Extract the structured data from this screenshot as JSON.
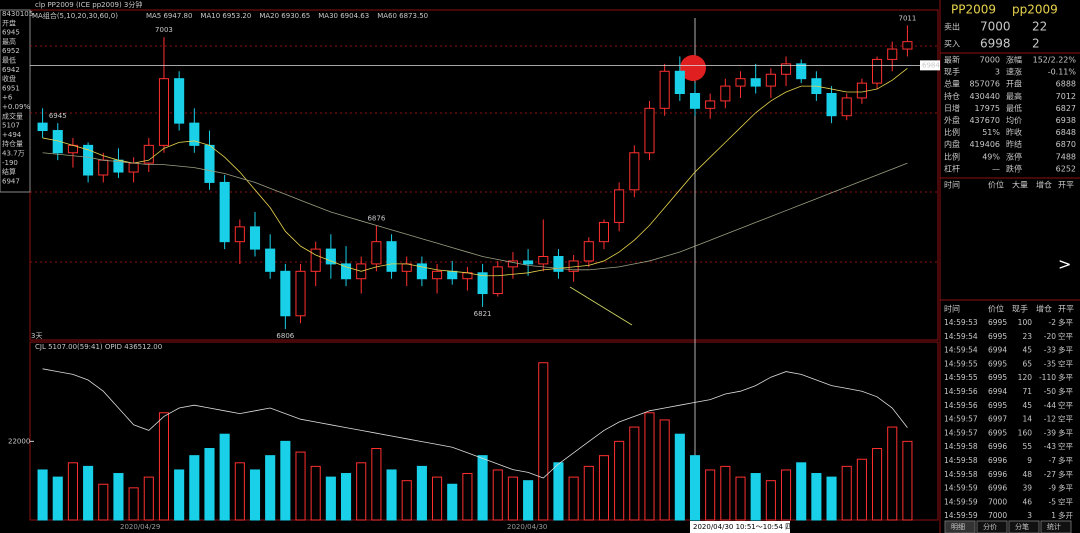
{
  "header": {
    "symbol": "clp PP2009 (ICE pp2009) 3分钟",
    "ma": [
      {
        "label": "MA组合(5,10,20,30,60,0)",
        "color": "#c8c8c8"
      },
      {
        "label": "MA5 6947.80",
        "color": "#ffffff"
      },
      {
        "label": "MA10 6953.20",
        "color": "#e8d44d"
      },
      {
        "label": "MA20 6930.65",
        "color": "#d040d0"
      },
      {
        "label": "MA30 6904.63",
        "color": "#40d040"
      },
      {
        "label": "MA60 6873.50",
        "color": "#9aa080"
      }
    ]
  },
  "info": [
    {
      "text": "8430105",
      "color": "#ffffff"
    },
    {
      "text": "开盘",
      "color": "#ffffff"
    },
    {
      "text": "6945",
      "color": "#ff4040"
    },
    {
      "text": "最高",
      "color": "#ffffff"
    },
    {
      "text": "6952",
      "color": "#ff4040"
    },
    {
      "text": "最低",
      "color": "#ffffff"
    },
    {
      "text": "6942",
      "color": "#40ff40"
    },
    {
      "text": "收盘",
      "color": "#ffffff"
    },
    {
      "text": "6951",
      "color": "#ff4040"
    },
    {
      "text": "+6",
      "color": "#ff4040"
    },
    {
      "text": "+0.09%",
      "color": "#ff4040"
    },
    {
      "text": "成交量",
      "color": "#ffffff"
    },
    {
      "text": "5107",
      "color": "#e8d44d"
    },
    {
      "text": "+494",
      "color": "#e8d44d"
    },
    {
      "text": "持仓量",
      "color": "#ffffff"
    },
    {
      "text": "43.7万",
      "color": "#e8d44d"
    },
    {
      "text": "-190",
      "color": "#40ff40"
    },
    {
      "text": "结算",
      "color": "#ffffff"
    },
    {
      "text": "6947",
      "color": "#e8d44d"
    }
  ],
  "chart_data": {
    "type": "candlestick",
    "up_color": "#ff3030",
    "down_color": "#19d0e8",
    "ylim": [
      6800,
      7020
    ],
    "candles": [
      [
        6945,
        6955,
        6935,
        6940
      ],
      [
        6940,
        6945,
        6920,
        6925
      ],
      [
        6925,
        6935,
        6915,
        6930
      ],
      [
        6930,
        6932,
        6905,
        6910
      ],
      [
        6910,
        6925,
        6905,
        6920
      ],
      [
        6920,
        6928,
        6908,
        6912
      ],
      [
        6912,
        6922,
        6905,
        6918
      ],
      [
        6918,
        6935,
        6912,
        6930
      ],
      [
        6930,
        7003,
        6925,
        6975
      ],
      [
        6975,
        6980,
        6940,
        6945
      ],
      [
        6945,
        6955,
        6925,
        6930
      ],
      [
        6930,
        6940,
        6900,
        6905
      ],
      [
        6905,
        6910,
        6860,
        6865
      ],
      [
        6865,
        6880,
        6850,
        6875
      ],
      [
        6875,
        6885,
        6855,
        6860
      ],
      [
        6860,
        6870,
        6840,
        6845
      ],
      [
        6845,
        6850,
        6806,
        6815
      ],
      [
        6815,
        6850,
        6810,
        6845
      ],
      [
        6845,
        6865,
        6835,
        6860
      ],
      [
        6860,
        6870,
        6840,
        6850
      ],
      [
        6850,
        6862,
        6835,
        6840
      ],
      [
        6840,
        6855,
        6830,
        6850
      ],
      [
        6850,
        6876,
        6845,
        6865
      ],
      [
        6865,
        6870,
        6840,
        6845
      ],
      [
        6845,
        6855,
        6835,
        6850
      ],
      [
        6850,
        6855,
        6835,
        6840
      ],
      [
        6840,
        6850,
        6830,
        6845
      ],
      [
        6845,
        6852,
        6836,
        6840
      ],
      [
        6840,
        6848,
        6832,
        6844
      ],
      [
        6844,
        6850,
        6821,
        6830
      ],
      [
        6830,
        6852,
        6828,
        6848
      ],
      [
        6848,
        6858,
        6840,
        6852
      ],
      [
        6852,
        6860,
        6842,
        6850
      ],
      [
        6850,
        6880,
        6845,
        6855
      ],
      [
        6855,
        6860,
        6840,
        6845
      ],
      [
        6845,
        6856,
        6838,
        6852
      ],
      [
        6852,
        6868,
        6848,
        6865
      ],
      [
        6865,
        6880,
        6860,
        6878
      ],
      [
        6878,
        6905,
        6872,
        6900
      ],
      [
        6900,
        6930,
        6895,
        6925
      ],
      [
        6925,
        6960,
        6920,
        6955
      ],
      [
        6955,
        6985,
        6950,
        6980
      ],
      [
        6980,
        6990,
        6960,
        6965
      ],
      [
        6965,
        6972,
        6950,
        6955
      ],
      [
        6955,
        6965,
        6948,
        6960
      ],
      [
        6960,
        6975,
        6955,
        6970
      ],
      [
        6970,
        6980,
        6962,
        6975
      ],
      [
        6975,
        6985,
        6965,
        6970
      ],
      [
        6970,
        6982,
        6962,
        6978
      ],
      [
        6978,
        6990,
        6970,
        6985
      ],
      [
        6985,
        6988,
        6972,
        6975
      ],
      [
        6975,
        6980,
        6960,
        6965
      ],
      [
        6965,
        6970,
        6945,
        6950
      ],
      [
        6950,
        6965,
        6947,
        6962
      ],
      [
        6962,
        6975,
        6958,
        6972
      ],
      [
        6972,
        6990,
        6968,
        6988
      ],
      [
        6988,
        7000,
        6980,
        6995
      ],
      [
        6995,
        7011,
        6990,
        7000
      ]
    ],
    "ma_series": [
      {
        "name": "MA10",
        "color": "#e8d44d",
        "values": [
          6935,
          6933,
          6930,
          6927,
          6923,
          6920,
          6918,
          6920,
          6928,
          6932,
          6933,
          6930,
          6922,
          6912,
          6900,
          6888,
          6872,
          6862,
          6856,
          6852,
          6848,
          6845,
          6848,
          6850,
          6850,
          6848,
          6846,
          6845,
          6844,
          6842,
          6842,
          6843,
          6844,
          6846,
          6847,
          6848,
          6849,
          6852,
          6858,
          6866,
          6876,
          6888,
          6900,
          6912,
          6922,
          6932,
          6942,
          6952,
          6960,
          6966,
          6970,
          6970,
          6968,
          6966,
          6966,
          6968,
          6974,
          6982
        ]
      },
      {
        "name": "MA60",
        "color": "#9aa080",
        "values": [
          6925,
          6924,
          6923,
          6922,
          6920,
          6919,
          6918,
          6917,
          6917,
          6916,
          6915,
          6913,
          6911,
          6908,
          6905,
          6901,
          6897,
          6893,
          6889,
          6885,
          6882,
          6879,
          6876,
          6873,
          6870,
          6867,
          6864,
          6861,
          6858,
          6855,
          6853,
          6851,
          6849,
          6848,
          6847,
          6846,
          6846,
          6847,
          6848,
          6850,
          6852,
          6855,
          6858,
          6862,
          6866,
          6870,
          6874,
          6878,
          6882,
          6886,
          6890,
          6894,
          6898,
          6902,
          6906,
          6910,
          6914,
          6918
        ]
      }
    ],
    "annotations": [
      7003,
      6876,
      6806,
      6821,
      6945,
      7011
    ],
    "crosshair": 6984,
    "period_label": "3天",
    "volume_header": "CJL 5107.00(59:41) OPID 436512.00",
    "volumes": [
      14000,
      12000,
      16000,
      15000,
      10000,
      13000,
      9000,
      12000,
      30000,
      14000,
      18000,
      20000,
      24000,
      16000,
      14000,
      18000,
      22000,
      19000,
      15000,
      12000,
      13000,
      16000,
      20000,
      14000,
      11000,
      15000,
      12000,
      10000,
      13000,
      18000,
      14000,
      12000,
      11000,
      44000,
      16000,
      12000,
      15000,
      18000,
      22000,
      26000,
      30000,
      28000,
      24000,
      18000,
      14000,
      15000,
      12000,
      13000,
      11000,
      14000,
      16000,
      13000,
      12000,
      15000,
      17000,
      20000,
      26000,
      22000
    ],
    "vlim": [
      0,
      47000
    ],
    "vticks": [
      22000
    ],
    "oi": [
      447000,
      446500,
      446000,
      445000,
      443000,
      440000,
      437000,
      436000,
      438500,
      440000,
      440500,
      440000,
      439500,
      439000,
      439500,
      440000,
      439000,
      438000,
      437500,
      437000,
      436500,
      436000,
      435500,
      435000,
      434500,
      434000,
      433500,
      433000,
      432000,
      431000,
      430000,
      429000,
      428500,
      427500,
      430000,
      432000,
      434000,
      436000,
      437500,
      438500,
      439500,
      440000,
      440500,
      441000,
      441500,
      442500,
      443000,
      444000,
      445500,
      446500,
      446000,
      445000,
      444000,
      443500,
      443000,
      442000,
      440000,
      436500
    ],
    "y2lim": [
      420000,
      450000
    ],
    "dates": [
      "2020/04/29",
      "2020/04/30",
      "2020/04/30 10:51～10:54 四"
    ]
  },
  "quote": {
    "title": "PP2009",
    "code": "pp2009",
    "sell": [
      "卖出",
      "7000",
      "22"
    ],
    "buy": [
      "买入",
      "6998",
      "2"
    ],
    "rows": [
      [
        "最新",
        "7000",
        "涨幅",
        "152/2.22%"
      ],
      [
        "现手",
        "3",
        "速涨",
        "-0.11%"
      ],
      [
        "总量",
        "857076",
        "开盘",
        "6888"
      ],
      [
        "持仓",
        "430440",
        "最高",
        "7012"
      ],
      [
        "日增",
        "17975",
        "最低",
        "6827"
      ],
      [
        "外盘",
        "437670",
        "均价",
        "6938"
      ],
      [
        "比例",
        "51%",
        "昨收",
        "6848"
      ],
      [
        "内盘",
        "419406",
        "昨结",
        "6870"
      ],
      [
        "比例",
        "49%",
        "涨停",
        "7488"
      ],
      [
        "杠杆",
        "—",
        "跌停",
        "6252"
      ]
    ]
  },
  "big_trades": {
    "columns": [
      "时间",
      "价位",
      "大量",
      "增仓",
      "开平"
    ]
  },
  "trades": {
    "columns": [
      "时间",
      "价位",
      "现手",
      "增仓",
      "开平"
    ],
    "rows": [
      [
        "14:59:53",
        "6995",
        "100",
        "-2",
        "多平"
      ],
      [
        "14:59:54",
        "6995",
        "23",
        "-20",
        "空平"
      ],
      [
        "14:59:54",
        "6994",
        "45",
        "-33",
        "多平"
      ],
      [
        "14:59:55",
        "6995",
        "65",
        "-35",
        "空平"
      ],
      [
        "14:59:55",
        "6995",
        "120",
        "-110",
        "多平"
      ],
      [
        "14:59:56",
        "6994",
        "71",
        "-50",
        "多平"
      ],
      [
        "14:59:56",
        "6995",
        "45",
        "-44",
        "空平"
      ],
      [
        "14:59:57",
        "6997",
        "14",
        "-12",
        "空平"
      ],
      [
        "14:59:57",
        "6995",
        "160",
        "-39",
        "多平"
      ],
      [
        "14:59:58",
        "6996",
        "55",
        "-43",
        "空平"
      ],
      [
        "14:59:58",
        "6996",
        "9",
        "-7",
        "多平"
      ],
      [
        "14:59:58",
        "6996",
        "48",
        "-27",
        "多平"
      ],
      [
        "14:59:59",
        "6996",
        "39",
        "-9",
        "多平"
      ],
      [
        "14:59:59",
        "7000",
        "46",
        "-5",
        "空平"
      ],
      [
        "14:59:59",
        "7000",
        "3",
        "1",
        "多开"
      ]
    ]
  },
  "tabs": [
    "明细",
    "分价",
    "分笔",
    "统计"
  ]
}
